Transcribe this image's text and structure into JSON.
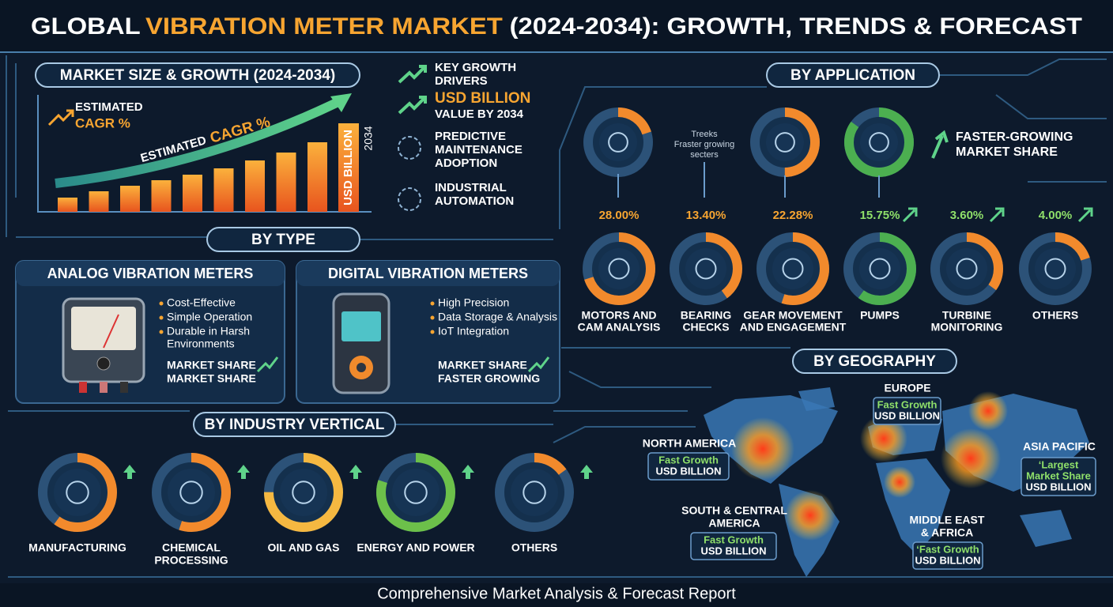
{
  "header": {
    "title": [
      "GLOBAL",
      "VIBRATION METER MARKET",
      "(2024-2034): GROWTH, TRENDS & FORECAST"
    ]
  },
  "market_size": {
    "heading": "MARKET SIZE & GROWTH (2024-2034)",
    "cagr": [
      "ESTIMATED",
      "CAGR %"
    ],
    "arrow_label": [
      "ESTIMATED",
      "CAGR %"
    ],
    "bar_label": "USD BILLION",
    "year": "2034"
  },
  "drivers": [
    [
      "KEY GROWTH",
      "DRIVERS"
    ],
    [
      "USD BILLION",
      "VALUE BY 2034"
    ],
    [
      "PREDICTIVE",
      "MAINTENANCE",
      "ADOPTION"
    ],
    [
      "INDUSTRIAL",
      "AUTOMATION"
    ]
  ],
  "by_type": {
    "heading": "BY TYPE",
    "types": [
      {
        "title": "ANALOG VIBRATION METERS",
        "features": [
          "Cost-Effective",
          "Simple Operation",
          "Durable in Harsh",
          "Environments"
        ],
        "share": [
          "MARKET SHARE",
          "MARKET SHARE"
        ]
      },
      {
        "title": "DIGITAL VIBRATION METERS",
        "features": [
          "High Precision",
          "Data Storage & Analysis",
          "IoT Integration"
        ],
        "share": [
          "MARKET SHARE",
          "FASTER GROWING"
        ]
      }
    ]
  },
  "by_application": {
    "heading": "BY APPLICATION",
    "note": [
      "Treeks",
      "Fraster growing",
      "secters"
    ],
    "callout": [
      "FASTER-GROWING",
      "MARKET SHARE"
    ],
    "items": [
      {
        "share": "28.00%",
        "label": [
          "MOTORS AND",
          "CAM ANALYSIS"
        ]
      },
      {
        "share": "13.40%",
        "label": [
          "BEARING",
          "CHECKS"
        ]
      },
      {
        "share": "22.28%",
        "label": [
          "GEAR MOVEMENT",
          "AND ENGAGEMENT"
        ]
      },
      {
        "share": "15.75%",
        "label": [
          "PUMPS"
        ]
      },
      {
        "share": "3.60%",
        "label": [
          "TURBINE",
          "MONITORING"
        ]
      },
      {
        "share": "4.00%",
        "label": [
          "OTHERS"
        ]
      }
    ]
  },
  "by_industry": {
    "heading": "BY INDUSTRY VERTICAL",
    "items": [
      [
        "MANUFACTURING"
      ],
      [
        "CHEMICAL",
        "PROCESSING"
      ],
      [
        "OIL AND GAS"
      ],
      [
        "ENERGY AND POWER"
      ],
      [
        "OTHERS"
      ]
    ]
  },
  "by_geography": {
    "heading": "BY GEOGRAPHY",
    "regions": [
      {
        "name": [
          "EUROPE"
        ],
        "details": [
          "Fast Growth",
          "USD BILLION"
        ]
      },
      {
        "name": [
          "NORTH AMERICA"
        ],
        "details": [
          "Fast Growth",
          "USD BILLION"
        ]
      },
      {
        "name": [
          "ASIA PACIFIC"
        ],
        "details": [
          "‘Largest",
          "Market Share",
          "USD BILLION"
        ]
      },
      {
        "name": [
          "SOUTH & CENTRAL",
          "AMERICA"
        ],
        "details": [
          "Fast Growth",
          "USD BILLION"
        ]
      },
      {
        "name": [
          "MIDDLE EAST",
          "& AFRICA"
        ],
        "details": [
          "‘Fast Growth",
          "USD BILLION"
        ]
      }
    ]
  },
  "footer": "Comprehensive Market Analysis & Forecast Report"
}
